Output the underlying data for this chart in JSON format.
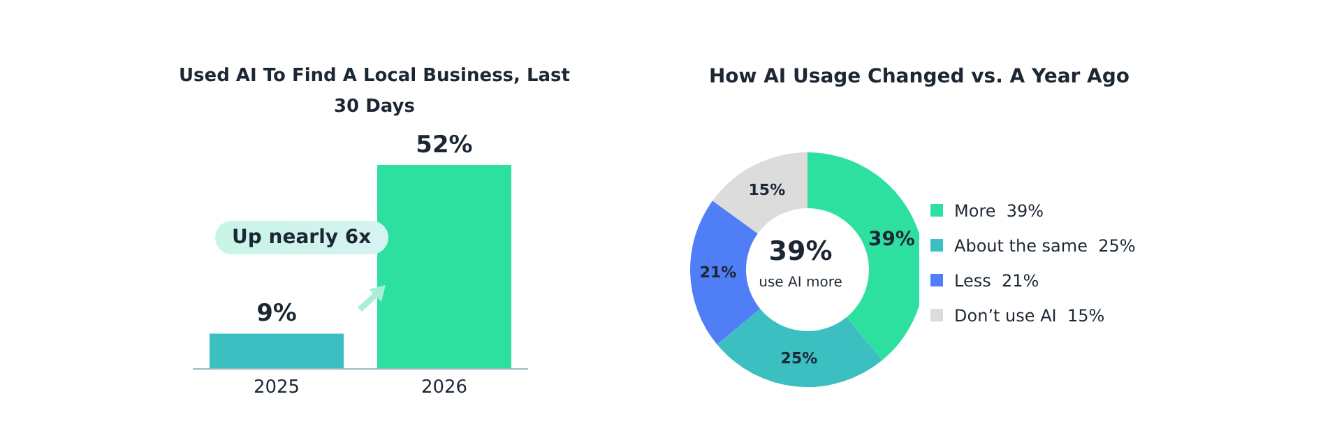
{
  "chart_data": [
    {
      "type": "bar",
      "title": "Used AI To Find A Local Business, Last 30 Days",
      "categories": [
        "2025",
        "2026"
      ],
      "values": [
        9,
        52
      ],
      "colors": [
        "#3bbfc0",
        "#2ee0a0"
      ],
      "value_labels": [
        "9%",
        "52%"
      ],
      "annotations": [
        "Up nearly 6x"
      ],
      "tick_labels": "x"
    },
    {
      "type": "donut",
      "title": "How AI Usage Changed vs. A Year Ago",
      "categories": [
        "More",
        "About the same",
        "Less",
        "Don’t use AI"
      ],
      "values": [
        39,
        25,
        21,
        15
      ],
      "colors": [
        "#2ee0a0",
        "#3bbfc0",
        "#4f7ef6",
        "#dcdcdc"
      ],
      "value_labels": [
        "39%",
        "25%",
        "21%",
        "15%"
      ],
      "annotations": [
        "39%",
        "use AI more"
      ],
      "legend": "right"
    }
  ]
}
